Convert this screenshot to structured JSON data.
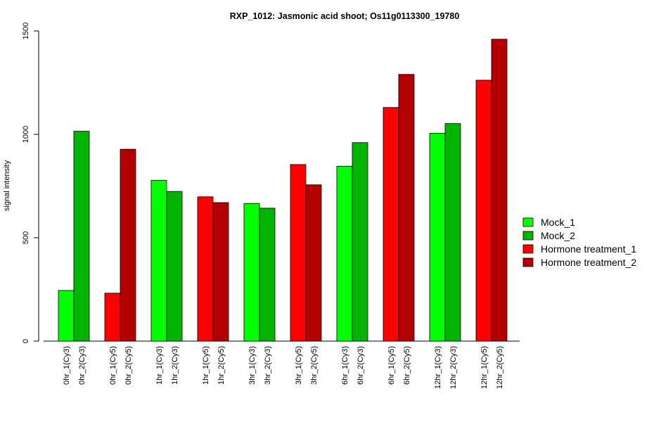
{
  "chart_data": {
    "type": "bar",
    "title": "RXP_1012: Jasmonic acid shoot; Os11g0113300_19780",
    "xlabel": "",
    "ylabel": "signal intensity",
    "ylim": [
      0,
      1500
    ],
    "yticks": [
      "0",
      "500",
      "1000",
      "1500"
    ],
    "grid": false,
    "legend_position": "right",
    "legend": [
      {
        "label": "Mock_1",
        "color": "#00ff00"
      },
      {
        "label": "Mock_2",
        "color": "#00b400"
      },
      {
        "label": "Hormone treatment_1",
        "color": "#ff0000"
      },
      {
        "label": "Hormone treatment_2",
        "color": "#b40000"
      }
    ],
    "bars": [
      {
        "label": "0hr_1(Cy3)",
        "value": 245,
        "color": "#00ff00"
      },
      {
        "label": "0hr_2(Cy3)",
        "value": 1015,
        "color": "#00b400"
      },
      {
        "label": "0hr_1(Cy5)",
        "value": 232,
        "color": "#ff0000"
      },
      {
        "label": "0hr_2(Cy5)",
        "value": 928,
        "color": "#b40000"
      },
      {
        "label": "1hr_1(Cy3)",
        "value": 778,
        "color": "#00ff00"
      },
      {
        "label": "1hr_2(Cy3)",
        "value": 724,
        "color": "#00b400"
      },
      {
        "label": "1hr_1(Cy5)",
        "value": 698,
        "color": "#ff0000"
      },
      {
        "label": "1hr_2(Cy5)",
        "value": 670,
        "color": "#b40000"
      },
      {
        "label": "3hr_1(Cy3)",
        "value": 666,
        "color": "#00ff00"
      },
      {
        "label": "3hr_2(Cy3)",
        "value": 643,
        "color": "#00b400"
      },
      {
        "label": "3hr_1(Cy5)",
        "value": 854,
        "color": "#ff0000"
      },
      {
        "label": "3hr_2(Cy5)",
        "value": 756,
        "color": "#b40000"
      },
      {
        "label": "6hr_1(Cy3)",
        "value": 846,
        "color": "#00ff00"
      },
      {
        "label": "6hr_2(Cy3)",
        "value": 960,
        "color": "#00b400"
      },
      {
        "label": "6hr_1(Cy5)",
        "value": 1130,
        "color": "#ff0000"
      },
      {
        "label": "6hr_2(Cy5)",
        "value": 1290,
        "color": "#b40000"
      },
      {
        "label": "12hr_1(Cy3)",
        "value": 1005,
        "color": "#00ff00"
      },
      {
        "label": "12hr_2(Cy3)",
        "value": 1052,
        "color": "#00b400"
      },
      {
        "label": "12hr_1(Cy5)",
        "value": 1262,
        "color": "#ff0000"
      },
      {
        "label": "12hr_2(Cy5)",
        "value": 1460,
        "color": "#b40000"
      }
    ]
  }
}
